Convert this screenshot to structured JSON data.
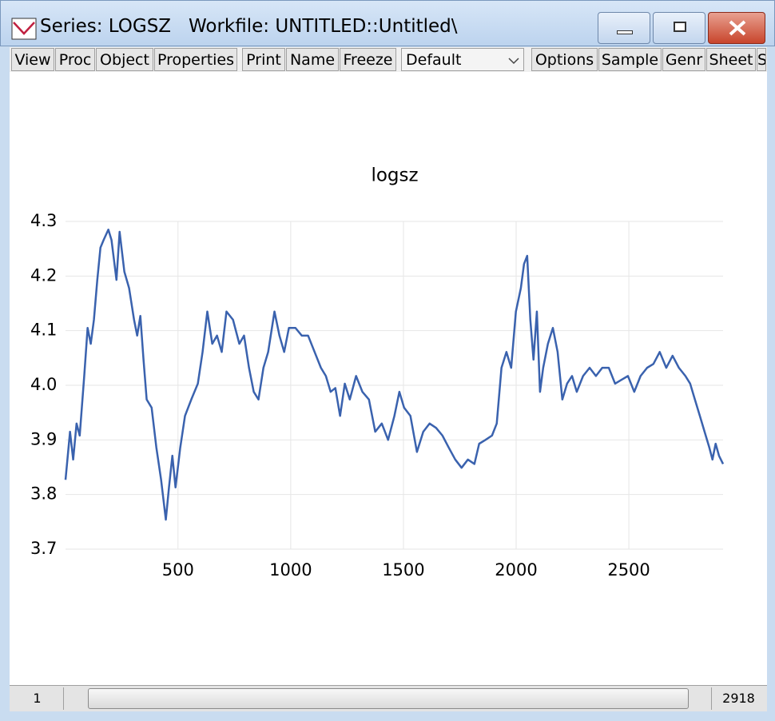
{
  "window": {
    "title": "Series: LOGSZ   Workfile: UNTITLED::Untitled\\"
  },
  "toolbar": {
    "buttons": [
      "View",
      "Proc",
      "Object",
      "Properties",
      "Print",
      "Name",
      "Freeze"
    ],
    "dropdown": "Default",
    "buttons_right": [
      "Options",
      "Sample",
      "Genr",
      "Sheet",
      "S"
    ]
  },
  "chart_data": {
    "type": "line",
    "title": "logsz",
    "x": [
      1,
      21,
      35,
      50,
      64,
      84,
      99,
      113,
      127,
      142,
      156,
      170,
      191,
      205,
      227,
      241,
      262,
      283,
      305,
      319,
      333,
      347,
      361,
      383,
      404,
      425,
      446,
      460,
      475,
      489,
      510,
      531,
      559,
      588,
      609,
      630,
      652,
      673,
      694,
      715,
      744,
      772,
      793,
      815,
      836,
      857,
      879,
      900,
      928,
      950,
      971,
      992,
      1021,
      1049,
      1077,
      1106,
      1134,
      1156,
      1177,
      1198,
      1219,
      1240,
      1262,
      1290,
      1318,
      1347,
      1375,
      1404,
      1432,
      1460,
      1482,
      1503,
      1531,
      1560,
      1588,
      1616,
      1645,
      1673,
      1701,
      1730,
      1758,
      1786,
      1815,
      1836,
      1864,
      1893,
      1914,
      1935,
      1957,
      1978,
      1999,
      2021,
      2035,
      2049,
      2063,
      2077,
      2092,
      2106,
      2120,
      2141,
      2163,
      2184,
      2205,
      2226,
      2248,
      2269,
      2297,
      2326,
      2354,
      2382,
      2411,
      2439,
      2467,
      2496,
      2524,
      2552,
      2581,
      2609,
      2637,
      2666,
      2694,
      2722,
      2751,
      2772,
      2793,
      2815,
      2836,
      2857,
      2871,
      2885,
      2900,
      2918
    ],
    "series": [
      {
        "name": "logsz",
        "color": "#3a62ae",
        "values": [
          3.827,
          3.915,
          3.864,
          3.93,
          3.908,
          4.017,
          4.105,
          4.076,
          4.12,
          4.193,
          4.252,
          4.266,
          4.285,
          4.266,
          4.193,
          4.281,
          4.208,
          4.178,
          4.12,
          4.091,
          4.127,
          4.047,
          3.974,
          3.959,
          3.886,
          3.827,
          3.754,
          3.813,
          3.871,
          3.813,
          3.886,
          3.944,
          3.974,
          4.003,
          4.061,
          4.135,
          4.076,
          4.091,
          4.061,
          4.135,
          4.12,
          4.076,
          4.091,
          4.032,
          3.988,
          3.974,
          4.032,
          4.061,
          4.135,
          4.091,
          4.061,
          4.105,
          4.105,
          4.091,
          4.091,
          4.061,
          4.032,
          4.017,
          3.988,
          3.995,
          3.944,
          4.003,
          3.974,
          4.017,
          3.988,
          3.974,
          3.915,
          3.93,
          3.9,
          3.944,
          3.988,
          3.959,
          3.944,
          3.878,
          3.915,
          3.93,
          3.922,
          3.908,
          3.886,
          3.864,
          3.849,
          3.864,
          3.856,
          3.893,
          3.9,
          3.908,
          3.93,
          4.032,
          4.061,
          4.032,
          4.135,
          4.178,
          4.222,
          4.237,
          4.12,
          4.047,
          4.135,
          3.988,
          4.032,
          4.076,
          4.105,
          4.061,
          3.974,
          4.003,
          4.017,
          3.988,
          4.017,
          4.032,
          4.017,
          4.032,
          4.032,
          4.003,
          4.01,
          4.017,
          3.988,
          4.017,
          4.032,
          4.039,
          4.061,
          4.032,
          4.054,
          4.032,
          4.017,
          4.003,
          3.974,
          3.944,
          3.915,
          3.886,
          3.864,
          3.893,
          3.871,
          3.856
        ]
      }
    ],
    "xlim": [
      1,
      2918
    ],
    "xticks": [
      500,
      1000,
      1500,
      2000,
      2500
    ],
    "ylim": [
      3.7,
      4.3
    ],
    "yticks": [
      4.3,
      4.2,
      4.1,
      {
        "value": 4,
        "label": "4.0"
      },
      3.9,
      3.8,
      3.7
    ],
    "grid": true
  },
  "status": {
    "first": "1",
    "last": "2918"
  }
}
